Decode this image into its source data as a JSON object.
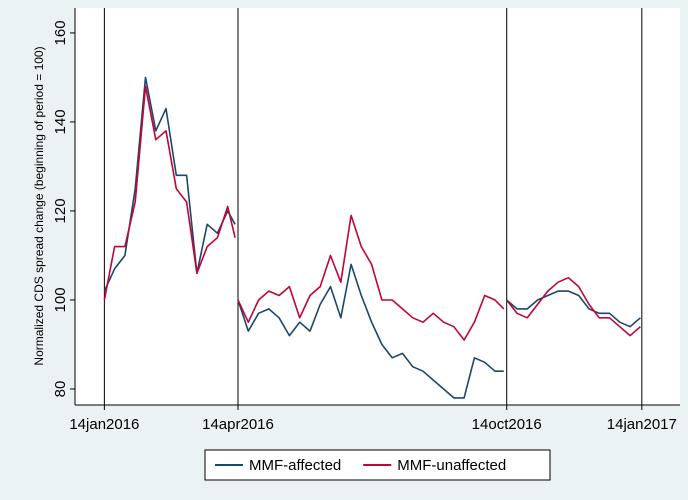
{
  "chart_data": {
    "type": "line",
    "y_label": "Normalized CDS spread change (beginning of period = 100)",
    "x": [
      "2016-01-14",
      "2016-01-21",
      "2016-01-28",
      "2016-02-04",
      "2016-02-11",
      "2016-02-18",
      "2016-02-25",
      "2016-03-03",
      "2016-03-10",
      "2016-03-17",
      "2016-03-24",
      "2016-03-31",
      "2016-04-07",
      "2016-04-12",
      "2016-04-13",
      "2016-04-14",
      "2016-04-21",
      "2016-04-28",
      "2016-05-05",
      "2016-05-12",
      "2016-05-19",
      "2016-05-26",
      "2016-06-02",
      "2016-06-09",
      "2016-06-16",
      "2016-06-23",
      "2016-06-30",
      "2016-07-07",
      "2016-07-14",
      "2016-07-21",
      "2016-07-28",
      "2016-08-04",
      "2016-08-11",
      "2016-08-18",
      "2016-08-25",
      "2016-09-01",
      "2016-09-08",
      "2016-09-15",
      "2016-09-22",
      "2016-09-29",
      "2016-10-06",
      "2016-10-12",
      "2016-10-13",
      "2016-10-14",
      "2016-10-21",
      "2016-10-28",
      "2016-11-04",
      "2016-11-11",
      "2016-11-18",
      "2016-11-25",
      "2016-12-02",
      "2016-12-09",
      "2016-12-16",
      "2016-12-23",
      "2016-12-30",
      "2017-01-06",
      "2017-01-13"
    ],
    "series": [
      {
        "name": "MMF-affected",
        "color": "#1a476f",
        "values": [
          102,
          107,
          110,
          125,
          150,
          138,
          143,
          128,
          128,
          106,
          117,
          115,
          120,
          117,
          null,
          100,
          93,
          97,
          98,
          96,
          92,
          95,
          93,
          99,
          103,
          96,
          108,
          101,
          95,
          90,
          87,
          88,
          85,
          84,
          82,
          80,
          78,
          78,
          87,
          86,
          84,
          84,
          null,
          100,
          98,
          98,
          100,
          101,
          102,
          102,
          101,
          98,
          97,
          97,
          95,
          94,
          96
        ]
      },
      {
        "name": "MMF-unaffected",
        "color": "#c10534",
        "values": [
          100,
          112,
          112,
          122,
          148,
          136,
          138,
          125,
          122,
          106,
          112,
          114,
          121,
          114,
          null,
          100,
          95,
          100,
          102,
          101,
          103,
          96,
          101,
          103,
          110,
          104,
          119,
          112,
          108,
          100,
          100,
          98,
          96,
          95,
          97,
          95,
          94,
          91,
          95,
          101,
          100,
          98,
          null,
          100,
          97,
          96,
          99,
          102,
          104,
          105,
          103,
          99,
          96,
          96,
          94,
          92,
          94
        ]
      }
    ],
    "xlim": [
      "2015-12-25",
      "2017-02-09"
    ],
    "xticks": [
      {
        "value": "2016-01-14",
        "label": "14jan2016"
      },
      {
        "value": "2016-04-14",
        "label": "14apr2016"
      },
      {
        "value": "2016-10-14",
        "label": "14oct2016"
      },
      {
        "value": "2017-01-14",
        "label": "14jan2017"
      }
    ],
    "xgrid": true,
    "ylim": [
      76.4,
      165.6
    ],
    "yticks": [
      80,
      100,
      120,
      140,
      160
    ],
    "legend": "bottom"
  }
}
